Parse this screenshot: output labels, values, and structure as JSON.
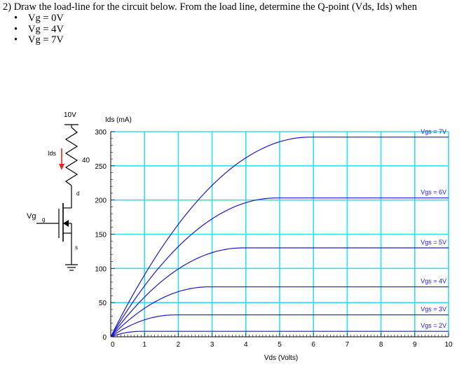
{
  "question": {
    "prompt": "2) Draw the load-line for the circuit below. From the load line, determine the Q-point (Vds, Ids) when",
    "conditions": [
      "Vg = 0V",
      "Vg = 4V",
      "Vg = 7V"
    ]
  },
  "circuit": {
    "supply_label": "10V",
    "resistor_label": "40",
    "current_label": "Ids",
    "drain_label": "d",
    "gate_label": "g",
    "source_label": "s",
    "gate_voltage_label": "Vg"
  },
  "colors": {
    "grid": "#33ddee",
    "curve": "#1a1acc",
    "arrow": "#ee2222"
  },
  "chart_data": {
    "type": "line",
    "title": "",
    "xlabel": "Vds (Volts)",
    "ylabel": "Ids (mA)",
    "xlim": [
      0,
      10
    ],
    "ylim": [
      0,
      300
    ],
    "xticks": [
      "0",
      "1",
      "2",
      "3",
      "4",
      "5",
      "6",
      "7",
      "8",
      "9",
      "10"
    ],
    "yticks": [
      "0",
      "50",
      "100",
      "150",
      "200",
      "250",
      "300"
    ],
    "grid": true,
    "series": [
      {
        "name": "Vgs = 7V",
        "saturation_vds": 5.9,
        "ids_sat": 292
      },
      {
        "name": "Vgs = 6V",
        "saturation_vds": 4.9,
        "ids_sat": 203
      },
      {
        "name": "Vgs = 5V",
        "saturation_vds": 3.9,
        "ids_sat": 130
      },
      {
        "name": "Vgs = 4V",
        "saturation_vds": 2.9,
        "ids_sat": 73
      },
      {
        "name": "Vgs = 3V",
        "saturation_vds": 1.9,
        "ids_sat": 32
      },
      {
        "name": "Vgs = 2V",
        "saturation_vds": 0.9,
        "ids_sat": 8
      }
    ]
  }
}
